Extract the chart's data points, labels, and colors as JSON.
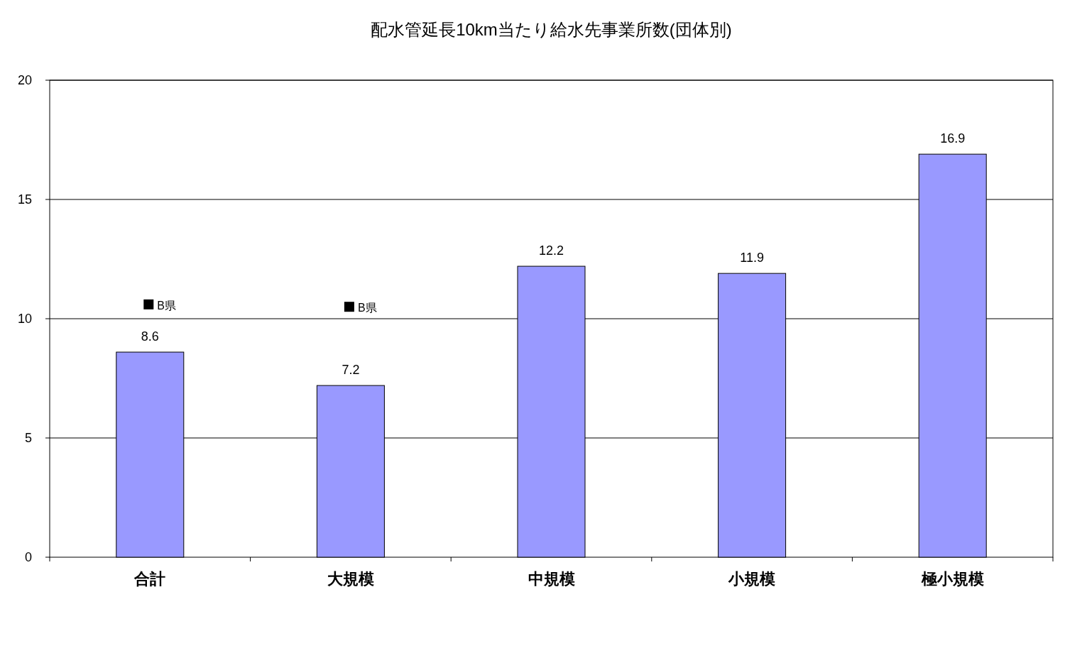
{
  "chart_data": {
    "type": "bar",
    "title": "配水管延長10km当たり給水先事業所数(団体別)",
    "categories": [
      "合計",
      "大規模",
      "中規模",
      "小規模",
      "極小規模"
    ],
    "series": [
      {
        "color": "#9999ff",
        "values": [
          8.6,
          7.2,
          12.2,
          11.9,
          16.9
        ],
        "value_labels": [
          "8.6",
          "7.2",
          "12.2",
          "11.9",
          "16.9"
        ]
      },
      {
        "type": "scatter",
        "name": "B県",
        "color": "#000000",
        "marker": "square",
        "x": [
          "合計",
          "大規模"
        ],
        "values": [
          10.6,
          10.5
        ]
      }
    ],
    "ylim": [
      0,
      20
    ],
    "yticks": [
      0,
      5,
      10,
      15,
      20
    ],
    "grid": "y",
    "legend": false
  }
}
